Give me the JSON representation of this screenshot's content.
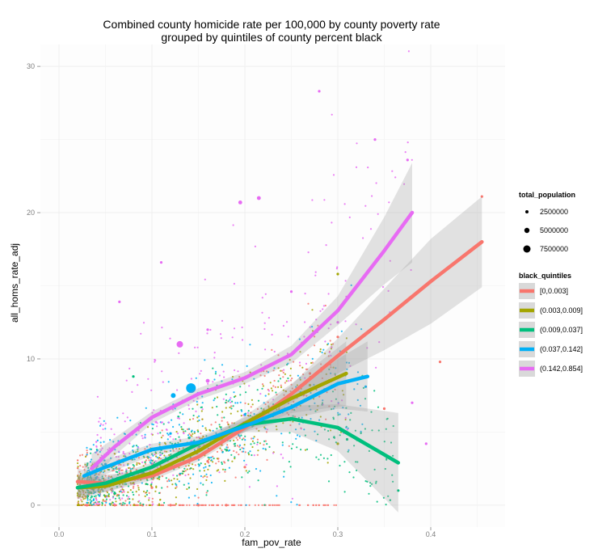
{
  "chart_data": {
    "type": "scatter",
    "title_line1": "Combined county homicide rate per 100,000 by county poverty rate",
    "title_line2": "grouped by quintiles of county percent black",
    "xlabel": "fam_pov_rate",
    "ylabel": "all_homs_rate_adj",
    "xlim": [
      -0.02,
      0.48
    ],
    "ylim": [
      -1.5,
      31.5
    ],
    "xticks": [
      0.0,
      0.1,
      0.2,
      0.3,
      0.4
    ],
    "xtick_labels": [
      "0.0",
      "0.1",
      "0.2",
      "0.3",
      "0.4"
    ],
    "yticks": [
      0,
      10,
      20,
      30
    ],
    "ytick_labels": [
      "0",
      "10",
      "20",
      "30"
    ],
    "grid": true,
    "background": "#fdfdfd",
    "legend_placement": "right",
    "size_legend": {
      "title": "total_population",
      "entries": [
        {
          "label": "2500000",
          "value": 2500000
        },
        {
          "label": "5000000",
          "value": 5000000
        },
        {
          "label": "7500000",
          "value": 7500000
        }
      ]
    },
    "color_legend": {
      "title": "black_quintiles",
      "entries": [
        {
          "label": "[0,0.003]",
          "color": "#f8766d"
        },
        {
          "label": "(0.003,0.009]",
          "color": "#a3a500"
        },
        {
          "label": "(0.009,0.037]",
          "color": "#00bf7d"
        },
        {
          "label": "(0.037,0.142]",
          "color": "#00b0f6"
        },
        {
          "label": "(0.142,0.854]",
          "color": "#e76bf3"
        }
      ]
    },
    "series": [
      {
        "name": "[0,0.003]",
        "color": "#f8766d",
        "smooth_x": [
          0.02,
          0.05,
          0.1,
          0.15,
          0.2,
          0.25,
          0.3,
          0.35,
          0.4,
          0.455
        ],
        "smooth_y": [
          1.6,
          1.5,
          2.0,
          3.3,
          5.3,
          7.6,
          10.2,
          12.7,
          15.3,
          18.0
        ],
        "band_lower": [
          0.7,
          0.9,
          1.7,
          3.0,
          5.0,
          7.0,
          9.0,
          10.6,
          12.4,
          14.9
        ],
        "band_upper": [
          2.5,
          2.1,
          2.3,
          3.6,
          5.6,
          8.2,
          11.4,
          14.8,
          18.2,
          21.1
        ],
        "points": [
          [
            0.03,
            0
          ],
          [
            0.06,
            0
          ],
          [
            0.09,
            0
          ],
          [
            0.12,
            0
          ],
          [
            0.15,
            0
          ],
          [
            0.18,
            0
          ],
          [
            0.1,
            1.2
          ],
          [
            0.13,
            2.1
          ],
          [
            0.16,
            3.0
          ],
          [
            0.2,
            2.6
          ],
          [
            0.27,
            9.0
          ],
          [
            0.3,
            11.5
          ],
          [
            0.35,
            6.6
          ],
          [
            0.41,
            9.8
          ],
          [
            0.455,
            21.1
          ]
        ]
      },
      {
        "name": "(0.003,0.009]",
        "color": "#a3a500",
        "smooth_x": [
          0.02,
          0.05,
          0.1,
          0.15,
          0.2,
          0.25,
          0.309
        ],
        "smooth_y": [
          1.2,
          1.3,
          2.2,
          3.7,
          5.6,
          7.3,
          9.0
        ],
        "band_lower": [
          0.4,
          0.9,
          1.9,
          3.3,
          5.1,
          6.3,
          6.8
        ],
        "band_upper": [
          2.0,
          1.7,
          2.5,
          4.1,
          6.1,
          8.3,
          11.2
        ],
        "points": [
          [
            0.05,
            0.6
          ],
          [
            0.08,
            1.5
          ],
          [
            0.11,
            2.6
          ],
          [
            0.14,
            3.1
          ],
          [
            0.18,
            4.8
          ],
          [
            0.22,
            6.4
          ],
          [
            0.27,
            8.2
          ],
          [
            0.3,
            15.8
          ],
          [
            0.3,
            4.2
          ]
        ]
      },
      {
        "name": "(0.009,0.037]",
        "color": "#00bf7d",
        "smooth_x": [
          0.02,
          0.05,
          0.1,
          0.15,
          0.2,
          0.25,
          0.3,
          0.365
        ],
        "smooth_y": [
          1.2,
          1.5,
          2.6,
          4.2,
          5.5,
          5.9,
          5.3,
          2.9
        ],
        "band_lower": [
          0.4,
          1.1,
          2.3,
          3.9,
          5.0,
          5.0,
          3.7,
          -0.5
        ],
        "band_upper": [
          2.0,
          1.9,
          2.9,
          4.5,
          6.0,
          6.8,
          6.9,
          6.3
        ],
        "points": [
          [
            0.06,
            0.8
          ],
          [
            0.09,
            2.2
          ],
          [
            0.11,
            3.8
          ],
          [
            0.14,
            4.6
          ],
          [
            0.19,
            5.2
          ],
          [
            0.23,
            6.1
          ],
          [
            0.31,
            4.5
          ],
          [
            0.365,
            1.0
          ],
          [
            0.08,
            8.8
          ]
        ]
      },
      {
        "name": "(0.037,0.142]",
        "color": "#00b0f6",
        "smooth_x": [
          0.027,
          0.05,
          0.1,
          0.15,
          0.2,
          0.25,
          0.3,
          0.332
        ],
        "smooth_y": [
          2.0,
          2.6,
          3.8,
          4.3,
          5.4,
          6.7,
          8.3,
          8.8
        ],
        "band_lower": [
          1.1,
          2.1,
          3.4,
          3.9,
          5.0,
          5.9,
          6.6,
          6.4
        ],
        "band_upper": [
          2.9,
          3.1,
          4.2,
          4.7,
          5.8,
          7.5,
          10.0,
          11.2
        ],
        "points": [
          [
            0.05,
            2.8
          ],
          [
            0.08,
            5.0
          ],
          [
            0.12,
            4.9
          ],
          [
            0.142,
            8.0
          ],
          [
            0.123,
            7.5
          ],
          [
            0.2,
            6.2
          ],
          [
            0.26,
            7.7
          ],
          [
            0.33,
            8.1
          ]
        ]
      },
      {
        "name": "(0.142,0.854]",
        "color": "#e76bf3",
        "smooth_x": [
          0.035,
          0.06,
          0.1,
          0.15,
          0.2,
          0.25,
          0.3,
          0.35,
          0.38
        ],
        "smooth_y": [
          2.5,
          4.0,
          6.0,
          7.6,
          8.7,
          10.3,
          13.3,
          17.4,
          20.0
        ],
        "band_lower": [
          1.5,
          3.4,
          5.6,
          7.2,
          8.3,
          9.7,
          12.3,
          15.1,
          16.6
        ],
        "band_upper": [
          3.5,
          4.6,
          6.4,
          8.0,
          9.1,
          10.9,
          14.3,
          19.7,
          23.4
        ],
        "points": [
          [
            0.13,
            11.0
          ],
          [
            0.28,
            28.3
          ],
          [
            0.34,
            25.0
          ],
          [
            0.375,
            23.6
          ],
          [
            0.195,
            20.7
          ],
          [
            0.215,
            21.0
          ],
          [
            0.065,
            13.9
          ],
          [
            0.11,
            16.6
          ],
          [
            0.16,
            12.0
          ],
          [
            0.25,
            14.6
          ],
          [
            0.3,
            12.5
          ],
          [
            0.38,
            7.0
          ],
          [
            0.395,
            4.2
          ]
        ]
      }
    ]
  }
}
